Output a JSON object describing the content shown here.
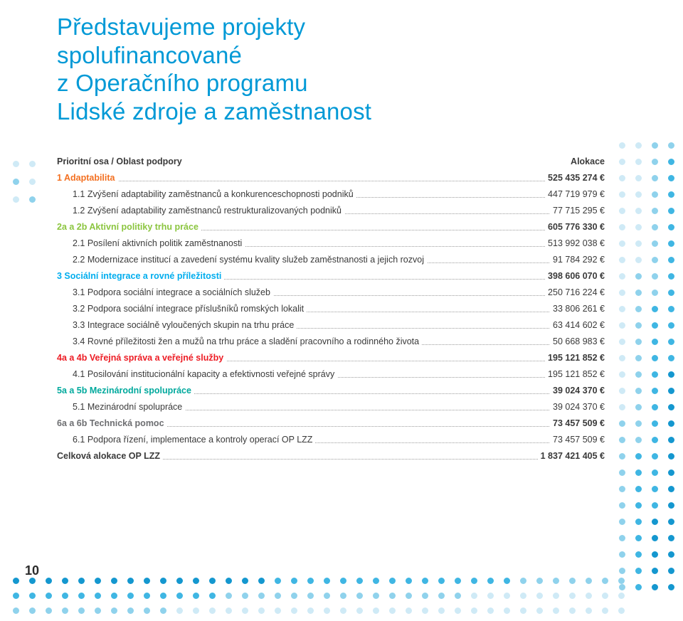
{
  "title_lines": [
    "Představujeme projekty",
    "spolufinancované",
    "z Operačního programu",
    "Lidské zdroje a zaměstnanost"
  ],
  "header": {
    "left": "Prioritní osa / Oblast podpory",
    "right": "Alokace"
  },
  "rows": [
    {
      "label": "1 Adaptabilita",
      "value": "525 435 274 €",
      "style": "bold orange"
    },
    {
      "label": "1.1 Zvýšení adaptability zaměstnanců a konkurenceschopnosti podniků",
      "value": "447 719 979 €",
      "style": "indent1"
    },
    {
      "label": "1.2 Zvýšení adaptability zaměstnanců restrukturalizovaných podniků",
      "value": "77 715 295 €",
      "style": "indent1"
    },
    {
      "label": "2a a 2b Aktivní politiky trhu práce",
      "value": "605 776 330 €",
      "style": "bold green"
    },
    {
      "label": "2.1 Posílení aktivních politik zaměstnanosti",
      "value": "513 992 038 €",
      "style": "indent1"
    },
    {
      "label": "2.2 Modernizace institucí a zavedení systému kvality služeb zaměstnanosti a jejich rozvoj",
      "value": "91 784 292 €",
      "style": "indent1"
    },
    {
      "label": "3 Sociální integrace a rovné příležitosti",
      "value": "398 606 070 €",
      "style": "bold blue2"
    },
    {
      "label": "3.1 Podpora sociální integrace a sociálních služeb",
      "value": "250 716 224 €",
      "style": "indent1"
    },
    {
      "label": "3.2 Podpora sociální integrace příslušníků romských lokalit",
      "value": "33 806 261 €",
      "style": "indent1"
    },
    {
      "label": "3.3 Integrace sociálně vyloučených skupin na trhu práce",
      "value": "63 414 602 €",
      "style": "indent1"
    },
    {
      "label": "3.4 Rovné příležitosti žen a mužů na trhu práce a sladění pracovního a rodinného života",
      "value": "50 668 983 €",
      "style": "indent1"
    },
    {
      "label": "4a a 4b Veřejná správa a veřejné služby",
      "value": "195 121 852 €",
      "style": "bold red"
    },
    {
      "label": "4.1 Posilování institucionální kapacity a efektivnosti veřejné správy",
      "value": "195 121 852 €",
      "style": "indent1"
    },
    {
      "label": "5a a 5b Mezinárodní spolupráce",
      "value": "39 024 370 €",
      "style": "bold teal"
    },
    {
      "label": "5.1 Mezinárodní spolupráce",
      "value": "39 024 370 €",
      "style": "indent1"
    },
    {
      "label": "6a a 6b Technická pomoc",
      "value": "73 457 509 €",
      "style": "bold grey"
    },
    {
      "label": "6.1 Podpora řízení, implementace a kontroly operací OP LZZ",
      "value": "73 457 509 €",
      "style": "indent1"
    },
    {
      "label": "Celková alokace OP LZZ",
      "value": "1 837 421 405 €",
      "style": "bold"
    }
  ],
  "page_number": "10",
  "dot_colors": {
    "light": "#cfeaf6",
    "med": "#8fd2ec",
    "dark": "#3fb6e3",
    "deep": "#1497cf"
  },
  "left_dots": [
    "light",
    "light",
    "med",
    "light",
    "light",
    "med"
  ],
  "right_grid": {
    "cols": 4,
    "rows": 28
  },
  "bottom_grid": {
    "cols": 38,
    "rows": 3
  }
}
